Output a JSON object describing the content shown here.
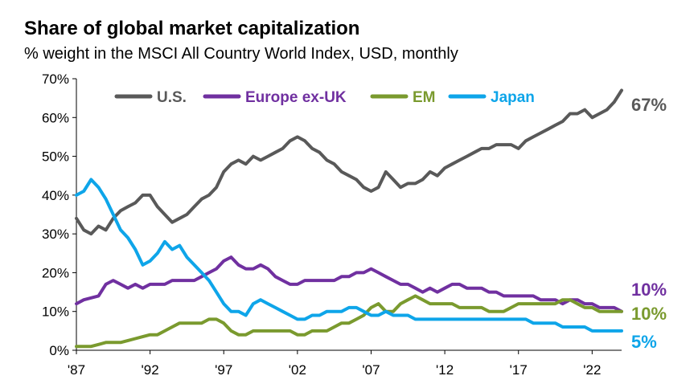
{
  "chart_data": {
    "type": "line",
    "title": "Share of global market capitalization",
    "subtitle": "% weight in the MSCI All Country World Index, USD, monthly",
    "xlabel": "",
    "ylabel": "",
    "x_ticks": [
      "'87",
      "'92",
      "'97",
      "'02",
      "'07",
      "'12",
      "'17",
      "'22"
    ],
    "y_ticks": [
      "0%",
      "10%",
      "20%",
      "30%",
      "40%",
      "50%",
      "60%",
      "70%"
    ],
    "xlim": [
      1987,
      2024
    ],
    "ylim": [
      0,
      70
    ],
    "grid": false,
    "legend_position": "top",
    "series": [
      {
        "name": "U.S.",
        "color": "#595959",
        "end_label": "67%",
        "points": [
          [
            1987,
            34
          ],
          [
            1987.5,
            31
          ],
          [
            1988,
            30
          ],
          [
            1988.5,
            32
          ],
          [
            1989,
            31
          ],
          [
            1989.5,
            34
          ],
          [
            1990,
            36
          ],
          [
            1990.5,
            37
          ],
          [
            1991,
            38
          ],
          [
            1991.5,
            40
          ],
          [
            1992,
            40
          ],
          [
            1992.5,
            37
          ],
          [
            1993,
            35
          ],
          [
            1993.5,
            33
          ],
          [
            1994,
            34
          ],
          [
            1994.5,
            35
          ],
          [
            1995,
            37
          ],
          [
            1995.5,
            39
          ],
          [
            1996,
            40
          ],
          [
            1996.5,
            42
          ],
          [
            1997,
            46
          ],
          [
            1997.5,
            48
          ],
          [
            1998,
            49
          ],
          [
            1998.5,
            48
          ],
          [
            1999,
            50
          ],
          [
            1999.5,
            49
          ],
          [
            2000,
            50
          ],
          [
            2000.5,
            51
          ],
          [
            2001,
            52
          ],
          [
            2001.5,
            54
          ],
          [
            2002,
            55
          ],
          [
            2002.5,
            54
          ],
          [
            2003,
            52
          ],
          [
            2003.5,
            51
          ],
          [
            2004,
            49
          ],
          [
            2004.5,
            48
          ],
          [
            2005,
            46
          ],
          [
            2005.5,
            45
          ],
          [
            2006,
            44
          ],
          [
            2006.5,
            42
          ],
          [
            2007,
            41
          ],
          [
            2007.5,
            42
          ],
          [
            2008,
            46
          ],
          [
            2008.5,
            44
          ],
          [
            2009,
            42
          ],
          [
            2009.5,
            43
          ],
          [
            2010,
            43
          ],
          [
            2010.5,
            44
          ],
          [
            2011,
            46
          ],
          [
            2011.5,
            45
          ],
          [
            2012,
            47
          ],
          [
            2012.5,
            48
          ],
          [
            2013,
            49
          ],
          [
            2013.5,
            50
          ],
          [
            2014,
            51
          ],
          [
            2014.5,
            52
          ],
          [
            2015,
            52
          ],
          [
            2015.5,
            53
          ],
          [
            2016,
            53
          ],
          [
            2016.5,
            53
          ],
          [
            2017,
            52
          ],
          [
            2017.5,
            54
          ],
          [
            2018,
            55
          ],
          [
            2018.5,
            56
          ],
          [
            2019,
            57
          ],
          [
            2019.5,
            58
          ],
          [
            2020,
            59
          ],
          [
            2020.5,
            61
          ],
          [
            2021,
            61
          ],
          [
            2021.5,
            62
          ],
          [
            2022,
            60
          ],
          [
            2022.5,
            61
          ],
          [
            2023,
            62
          ],
          [
            2023.5,
            64
          ],
          [
            2024,
            67
          ]
        ]
      },
      {
        "name": "Europe ex-UK",
        "color": "#7030a0",
        "end_label": "10%",
        "points": [
          [
            1987,
            12
          ],
          [
            1987.5,
            13
          ],
          [
            1988,
            13.5
          ],
          [
            1988.5,
            14
          ],
          [
            1989,
            17
          ],
          [
            1989.5,
            18
          ],
          [
            1990,
            17
          ],
          [
            1990.5,
            16
          ],
          [
            1991,
            17
          ],
          [
            1991.5,
            16
          ],
          [
            1992,
            17
          ],
          [
            1992.5,
            17
          ],
          [
            1993,
            17
          ],
          [
            1993.5,
            18
          ],
          [
            1994,
            18
          ],
          [
            1994.5,
            18
          ],
          [
            1995,
            18
          ],
          [
            1995.5,
            19
          ],
          [
            1996,
            20
          ],
          [
            1996.5,
            21
          ],
          [
            1997,
            23
          ],
          [
            1997.5,
            24
          ],
          [
            1998,
            22
          ],
          [
            1998.5,
            21
          ],
          [
            1999,
            21
          ],
          [
            1999.5,
            22
          ],
          [
            2000,
            21
          ],
          [
            2000.5,
            19
          ],
          [
            2001,
            18
          ],
          [
            2001.5,
            17
          ],
          [
            2002,
            17
          ],
          [
            2002.5,
            18
          ],
          [
            2003,
            18
          ],
          [
            2003.5,
            18
          ],
          [
            2004,
            18
          ],
          [
            2004.5,
            18
          ],
          [
            2005,
            19
          ],
          [
            2005.5,
            19
          ],
          [
            2006,
            20
          ],
          [
            2006.5,
            20
          ],
          [
            2007,
            21
          ],
          [
            2007.5,
            20
          ],
          [
            2008,
            19
          ],
          [
            2008.5,
            18
          ],
          [
            2009,
            17
          ],
          [
            2009.5,
            17
          ],
          [
            2010,
            16
          ],
          [
            2010.5,
            15
          ],
          [
            2011,
            16
          ],
          [
            2011.5,
            15
          ],
          [
            2012,
            16
          ],
          [
            2012.5,
            17
          ],
          [
            2013,
            17
          ],
          [
            2013.5,
            16
          ],
          [
            2014,
            16
          ],
          [
            2014.5,
            16
          ],
          [
            2015,
            15
          ],
          [
            2015.5,
            15
          ],
          [
            2016,
            14
          ],
          [
            2016.5,
            14
          ],
          [
            2017,
            14
          ],
          [
            2017.5,
            14
          ],
          [
            2018,
            14
          ],
          [
            2018.5,
            13
          ],
          [
            2019,
            13
          ],
          [
            2019.5,
            13
          ],
          [
            2020,
            12
          ],
          [
            2020.5,
            13
          ],
          [
            2021,
            13
          ],
          [
            2021.5,
            12
          ],
          [
            2022,
            12
          ],
          [
            2022.5,
            11
          ],
          [
            2023,
            11
          ],
          [
            2023.5,
            11
          ],
          [
            2024,
            10
          ]
        ]
      },
      {
        "name": "EM",
        "color": "#7a9a2e",
        "end_label": "10%",
        "points": [
          [
            1987,
            1
          ],
          [
            1987.5,
            1
          ],
          [
            1988,
            1
          ],
          [
            1988.5,
            1.5
          ],
          [
            1989,
            2
          ],
          [
            1989.5,
            2
          ],
          [
            1990,
            2
          ],
          [
            1990.5,
            2.5
          ],
          [
            1991,
            3
          ],
          [
            1991.5,
            3.5
          ],
          [
            1992,
            4
          ],
          [
            1992.5,
            4
          ],
          [
            1993,
            5
          ],
          [
            1993.5,
            6
          ],
          [
            1994,
            7
          ],
          [
            1994.5,
            7
          ],
          [
            1995,
            7
          ],
          [
            1995.5,
            7
          ],
          [
            1996,
            8
          ],
          [
            1996.5,
            8
          ],
          [
            1997,
            7
          ],
          [
            1997.5,
            5
          ],
          [
            1998,
            4
          ],
          [
            1998.5,
            4
          ],
          [
            1999,
            5
          ],
          [
            1999.5,
            5
          ],
          [
            2000,
            5
          ],
          [
            2000.5,
            5
          ],
          [
            2001,
            5
          ],
          [
            2001.5,
            5
          ],
          [
            2002,
            4
          ],
          [
            2002.5,
            4
          ],
          [
            2003,
            5
          ],
          [
            2003.5,
            5
          ],
          [
            2004,
            5
          ],
          [
            2004.5,
            6
          ],
          [
            2005,
            7
          ],
          [
            2005.5,
            7
          ],
          [
            2006,
            8
          ],
          [
            2006.5,
            9
          ],
          [
            2007,
            11
          ],
          [
            2007.5,
            12
          ],
          [
            2008,
            10
          ],
          [
            2008.5,
            10
          ],
          [
            2009,
            12
          ],
          [
            2009.5,
            13
          ],
          [
            2010,
            14
          ],
          [
            2010.5,
            13
          ],
          [
            2011,
            12
          ],
          [
            2011.5,
            12
          ],
          [
            2012,
            12
          ],
          [
            2012.5,
            12
          ],
          [
            2013,
            11
          ],
          [
            2013.5,
            11
          ],
          [
            2014,
            11
          ],
          [
            2014.5,
            11
          ],
          [
            2015,
            10
          ],
          [
            2015.5,
            10
          ],
          [
            2016,
            10
          ],
          [
            2016.5,
            11
          ],
          [
            2017,
            12
          ],
          [
            2017.5,
            12
          ],
          [
            2018,
            12
          ],
          [
            2018.5,
            12
          ],
          [
            2019,
            12
          ],
          [
            2019.5,
            12
          ],
          [
            2020,
            13
          ],
          [
            2020.5,
            13
          ],
          [
            2021,
            12
          ],
          [
            2021.5,
            11
          ],
          [
            2022,
            11
          ],
          [
            2022.5,
            10
          ],
          [
            2023,
            10
          ],
          [
            2023.5,
            10
          ],
          [
            2024,
            10
          ]
        ]
      },
      {
        "name": "Japan",
        "color": "#0ea5e9",
        "end_label": "5%",
        "points": [
          [
            1987,
            40
          ],
          [
            1987.5,
            41
          ],
          [
            1988,
            44
          ],
          [
            1988.5,
            42
          ],
          [
            1989,
            39
          ],
          [
            1989.5,
            35
          ],
          [
            1990,
            31
          ],
          [
            1990.5,
            29
          ],
          [
            1991,
            26
          ],
          [
            1991.5,
            22
          ],
          [
            1992,
            23
          ],
          [
            1992.5,
            25
          ],
          [
            1993,
            28
          ],
          [
            1993.5,
            26
          ],
          [
            1994,
            27
          ],
          [
            1994.5,
            24
          ],
          [
            1995,
            22
          ],
          [
            1995.5,
            20
          ],
          [
            1996,
            18
          ],
          [
            1996.5,
            15
          ],
          [
            1997,
            12
          ],
          [
            1997.5,
            10
          ],
          [
            1998,
            10
          ],
          [
            1998.5,
            9
          ],
          [
            1999,
            12
          ],
          [
            1999.5,
            13
          ],
          [
            2000,
            12
          ],
          [
            2000.5,
            11
          ],
          [
            2001,
            10
          ],
          [
            2001.5,
            9
          ],
          [
            2002,
            8
          ],
          [
            2002.5,
            8
          ],
          [
            2003,
            9
          ],
          [
            2003.5,
            9
          ],
          [
            2004,
            10
          ],
          [
            2004.5,
            10
          ],
          [
            2005,
            10
          ],
          [
            2005.5,
            11
          ],
          [
            2006,
            11
          ],
          [
            2006.5,
            10
          ],
          [
            2007,
            9
          ],
          [
            2007.5,
            9
          ],
          [
            2008,
            10
          ],
          [
            2008.5,
            9
          ],
          [
            2009,
            9
          ],
          [
            2009.5,
            9
          ],
          [
            2010,
            8
          ],
          [
            2010.5,
            8
          ],
          [
            2011,
            8
          ],
          [
            2011.5,
            8
          ],
          [
            2012,
            8
          ],
          [
            2012.5,
            8
          ],
          [
            2013,
            8
          ],
          [
            2013.5,
            8
          ],
          [
            2014,
            8
          ],
          [
            2014.5,
            8
          ],
          [
            2015,
            8
          ],
          [
            2015.5,
            8
          ],
          [
            2016,
            8
          ],
          [
            2016.5,
            8
          ],
          [
            2017,
            8
          ],
          [
            2017.5,
            8
          ],
          [
            2018,
            7
          ],
          [
            2018.5,
            7
          ],
          [
            2019,
            7
          ],
          [
            2019.5,
            7
          ],
          [
            2020,
            6
          ],
          [
            2020.5,
            6
          ],
          [
            2021,
            6
          ],
          [
            2021.5,
            6
          ],
          [
            2022,
            5
          ],
          [
            2022.5,
            5
          ],
          [
            2023,
            5
          ],
          [
            2023.5,
            5
          ],
          [
            2024,
            5
          ]
        ]
      }
    ]
  }
}
